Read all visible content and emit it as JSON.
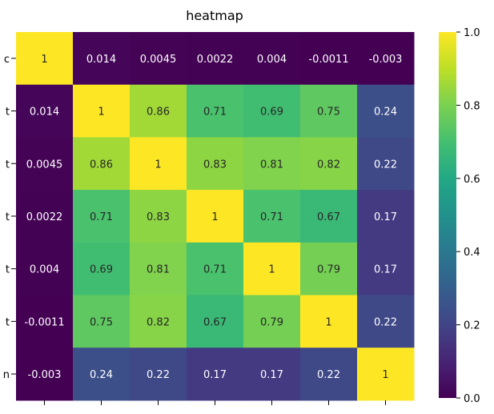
{
  "chart_data": {
    "type": "heatmap",
    "title": "heatmap",
    "row_tick_labels": [
      "c",
      "t",
      "t",
      "t",
      "t",
      "t",
      "n"
    ],
    "matrix": [
      [
        "1",
        "0.014",
        "0.0045",
        "0.0022",
        "0.004",
        "-0.0011",
        "-0.003"
      ],
      [
        "0.014",
        "1",
        "0.86",
        "0.71",
        "0.69",
        "0.75",
        "0.24"
      ],
      [
        "0.0045",
        "0.86",
        "1",
        "0.83",
        "0.81",
        "0.82",
        "0.22"
      ],
      [
        "0.0022",
        "0.71",
        "0.83",
        "1",
        "0.71",
        "0.67",
        "0.17"
      ],
      [
        "0.004",
        "0.69",
        "0.81",
        "0.71",
        "1",
        "0.79",
        "0.17"
      ],
      [
        "-0.0011",
        "0.75",
        "0.82",
        "0.67",
        "0.79",
        "1",
        "0.22"
      ],
      [
        "-0.003",
        "0.24",
        "0.22",
        "0.17",
        "0.17",
        "0.22",
        "1"
      ]
    ],
    "colormap": "viridis",
    "colorbar": {
      "min": 0.0,
      "max": 1.0,
      "tick_labels": [
        "0.0",
        "0.2",
        "0.4",
        "0.6",
        "0.8",
        "1.0"
      ]
    },
    "text_colors": {
      "dark": "#262626",
      "light": "#ffffff"
    }
  }
}
